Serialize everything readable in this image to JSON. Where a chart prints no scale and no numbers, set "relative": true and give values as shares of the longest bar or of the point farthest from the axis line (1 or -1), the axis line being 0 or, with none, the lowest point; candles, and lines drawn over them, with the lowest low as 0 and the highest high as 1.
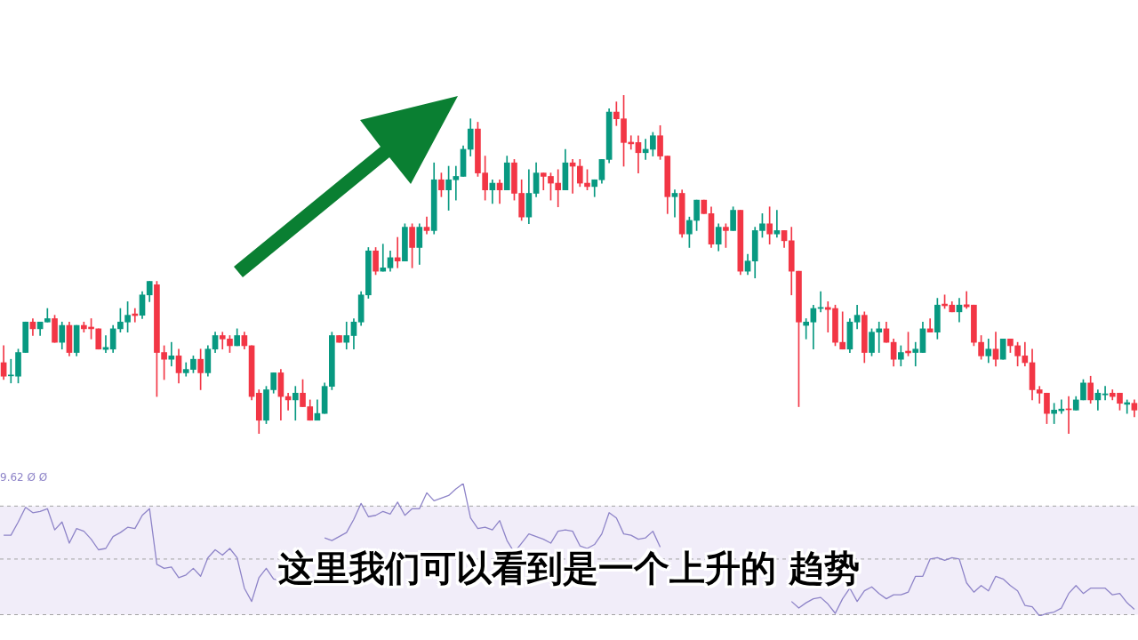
{
  "chart_data": [
    {
      "type": "candlestick",
      "relative": true,
      "categories": [
        null,
        null,
        null,
        null,
        null,
        null,
        null,
        null,
        null,
        null,
        null,
        null,
        null,
        null,
        null,
        null,
        null,
        null,
        null,
        null,
        null,
        null,
        null,
        null,
        null,
        null,
        null,
        null,
        null,
        null,
        null,
        null,
        null,
        null,
        null,
        null,
        null,
        null,
        null,
        null,
        null,
        null,
        null,
        null,
        null,
        null,
        null,
        null,
        null,
        null,
        null,
        null,
        null,
        null,
        null,
        null,
        null,
        null,
        null,
        null,
        null,
        null,
        null,
        null,
        null,
        null,
        null,
        null,
        null,
        null,
        null,
        null,
        null,
        null,
        null,
        null,
        null,
        null,
        null,
        null,
        null,
        null,
        null,
        null,
        null,
        null,
        null,
        null,
        null,
        null,
        null,
        null,
        null,
        null,
        null,
        null,
        null,
        null,
        null,
        null,
        null,
        null,
        null,
        null,
        null,
        null,
        null,
        null,
        null,
        null,
        null,
        null,
        null,
        null,
        null,
        null,
        null,
        null,
        null,
        null,
        null,
        null,
        null,
        null,
        null,
        null,
        null,
        null,
        null,
        null,
        null,
        null,
        null,
        null,
        null,
        null,
        null,
        null,
        null,
        null,
        null,
        null,
        null,
        null,
        null,
        null,
        null,
        null,
        null,
        null,
        null,
        null,
        null,
        null,
        null,
        null
      ],
      "colors": [
        "#f23645",
        "#089981",
        "#089981",
        "#089981",
        "#f23645",
        "#089981",
        "#089981",
        "#f23645",
        "#089981",
        "#f23645",
        "#089981",
        "#f23645",
        "#f23645",
        "#f23645",
        "#089981",
        "#089981",
        "#089981",
        "#089981",
        "#f23645",
        "#089981",
        "#089981",
        "#f23645",
        "#f23645",
        "#089981",
        "#f23645",
        "#089981",
        "#089981",
        "#f23645",
        "#089981",
        "#089981",
        "#f23645",
        "#f23645",
        "#089981",
        "#f23645",
        "#f23645",
        "#f23645",
        "#089981",
        "#089981",
        "#f23645",
        "#f23645",
        "#089981",
        "#f23645",
        "#f23645",
        "#089981",
        "#089981",
        "#089981",
        "#f23645",
        "#089981",
        "#089981",
        "#089981",
        "#089981",
        "#f23645",
        "#089981",
        "#089981",
        "#f23645",
        "#089981",
        "#f23645",
        "#089981",
        "#f23645",
        "#089981",
        "#f23645",
        "#089981",
        "#089981",
        "#089981",
        "#089981",
        "#f23645",
        "#f23645",
        "#089981",
        "#f23645",
        "#089981",
        "#f23645",
        "#f23645",
        "#089981",
        "#089981",
        "#f23645",
        "#f23645",
        "#f23645",
        "#089981",
        "#f23645",
        "#f23645",
        "#f23645",
        "#089981",
        "#089981",
        "#089981",
        "#f23645",
        "#f23645",
        "#f23645",
        "#f23645",
        "#089981",
        "#089981",
        "#f23645",
        "#f23645",
        "#089981",
        "#f23645",
        "#089981",
        "#089981",
        "#f23645",
        "#f23645",
        "#089981",
        "#f23645",
        "#089981",
        "#f23645",
        "#089981",
        "#089981",
        "#089981",
        "#f23645",
        "#089981",
        "#f23645",
        "#f23645",
        "#f23645",
        "#089981",
        "#089981",
        "#089981",
        "#f23645",
        "#f23645",
        "#f23645",
        "#089981",
        "#089981",
        "#f23645",
        "#089981",
        "#089981",
        "#f23645",
        "#f23645",
        "#089981",
        "#f23645",
        "#089981",
        "#089981",
        "#f23645",
        "#089981",
        "#f23645",
        "#f23645",
        "#089981",
        "#f23645",
        "#f23645",
        "#f23645",
        "#089981",
        "#f23645",
        "#089981",
        "#f23645",
        "#f23645",
        "#f23645",
        "#f23645",
        "#f23645",
        "#f23645",
        "#089981",
        "#089981",
        "#f23645",
        "#089981",
        "#089981",
        "#f23645",
        "#089981",
        "#089981",
        "#f23645",
        "#f23645",
        "#089981",
        "#f23645"
      ],
      "ohlc": [
        [
          0.21,
          0.26,
          0.16,
          0.17
        ],
        [
          0.171,
          0.22,
          0.15,
          0.173
        ],
        [
          0.17,
          0.25,
          0.15,
          0.24
        ],
        [
          0.24,
          0.33,
          0.24,
          0.33
        ],
        [
          0.33,
          0.34,
          0.29,
          0.31
        ],
        [
          0.31,
          0.33,
          0.29,
          0.33
        ],
        [
          0.33,
          0.37,
          0.33,
          0.34
        ],
        [
          0.34,
          0.35,
          0.27,
          0.27
        ],
        [
          0.27,
          0.33,
          0.25,
          0.32
        ],
        [
          0.32,
          0.33,
          0.23,
          0.24
        ],
        [
          0.24,
          0.32,
          0.23,
          0.32
        ],
        [
          0.32,
          0.33,
          0.3,
          0.31
        ],
        [
          0.315,
          0.34,
          0.28,
          0.31
        ],
        [
          0.31,
          0.31,
          0.25,
          0.25
        ],
        [
          0.249,
          0.29,
          0.24,
          0.255
        ],
        [
          0.25,
          0.32,
          0.24,
          0.31
        ],
        [
          0.31,
          0.37,
          0.3,
          0.33
        ],
        [
          0.33,
          0.39,
          0.3,
          0.35
        ],
        [
          0.354,
          0.37,
          0.33,
          0.349
        ],
        [
          0.35,
          0.42,
          0.34,
          0.41
        ],
        [
          0.41,
          0.45,
          0.39,
          0.45
        ],
        [
          0.44,
          0.45,
          0.11,
          0.24
        ],
        [
          0.24,
          0.26,
          0.16,
          0.22
        ],
        [
          0.22,
          0.27,
          0.2,
          0.23
        ],
        [
          0.23,
          0.25,
          0.15,
          0.18
        ],
        [
          0.18,
          0.21,
          0.17,
          0.19
        ],
        [
          0.19,
          0.23,
          0.18,
          0.22
        ],
        [
          0.22,
          0.25,
          0.13,
          0.18
        ],
        [
          0.18,
          0.26,
          0.17,
          0.25
        ],
        [
          0.25,
          0.3,
          0.24,
          0.29
        ],
        [
          0.29,
          0.3,
          0.25,
          0.28
        ],
        [
          0.28,
          0.29,
          0.24,
          0.26
        ],
        [
          0.26,
          0.31,
          0.26,
          0.29
        ],
        [
          0.29,
          0.3,
          0.25,
          0.26
        ],
        [
          0.26,
          0.26,
          0.1,
          0.11
        ],
        [
          0.12,
          0.13,
          0,
          0.04
        ],
        [
          0.04,
          0.14,
          0.03,
          0.13
        ],
        [
          0.13,
          0.18,
          0.12,
          0.18
        ],
        [
          0.18,
          0.19,
          0.04,
          0.11
        ],
        [
          0.11,
          0.12,
          0.07,
          0.1
        ],
        [
          0.1,
          0.14,
          0.04,
          0.12
        ],
        [
          0.12,
          0.16,
          0.08,
          0.08
        ],
        [
          0.08,
          0.1,
          0.04,
          0.04
        ],
        [
          0.04,
          0.1,
          0.04,
          0.06
        ],
        [
          0.06,
          0.15,
          0.06,
          0.14
        ],
        [
          0.14,
          0.3,
          0.13,
          0.29
        ],
        [
          0.29,
          0.29,
          0.27,
          0.27
        ],
        [
          0.27,
          0.33,
          0.25,
          0.29
        ],
        [
          0.29,
          0.34,
          0.25,
          0.33
        ],
        [
          0.33,
          0.42,
          0.32,
          0.41
        ],
        [
          0.41,
          0.55,
          0.4,
          0.54
        ],
        [
          0.54,
          0.55,
          0.47,
          0.48
        ],
        [
          0.48,
          0.56,
          0.48,
          0.49
        ],
        [
          0.49,
          0.54,
          0.48,
          0.52
        ],
        [
          0.52,
          0.58,
          0.49,
          0.51
        ],
        [
          0.51,
          0.62,
          0.51,
          0.61
        ],
        [
          0.61,
          0.62,
          0.49,
          0.55
        ],
        [
          0.55,
          0.62,
          0.5,
          0.61
        ],
        [
          0.61,
          0.64,
          0.59,
          0.6
        ],
        [
          0.6,
          0.8,
          0.59,
          0.75
        ],
        [
          0.75,
          0.77,
          0.7,
          0.72
        ],
        [
          0.72,
          0.79,
          0.66,
          0.75
        ],
        [
          0.75,
          0.79,
          0.69,
          0.76
        ],
        [
          0.76,
          0.85,
          0.76,
          0.84
        ],
        [
          0.84,
          0.93,
          0.82,
          0.9
        ],
        [
          0.9,
          0.92,
          0.76,
          0.77
        ],
        [
          0.77,
          0.82,
          0.69,
          0.72
        ],
        [
          0.72,
          0.75,
          0.68,
          0.74
        ],
        [
          0.74,
          0.75,
          0.68,
          0.72
        ],
        [
          0.72,
          0.82,
          0.72,
          0.8
        ],
        [
          0.8,
          0.81,
          0.69,
          0.71
        ],
        [
          0.71,
          0.75,
          0.63,
          0.64
        ],
        [
          0.64,
          0.78,
          0.62,
          0.71
        ],
        [
          0.71,
          0.8,
          0.7,
          0.77
        ],
        [
          0.77,
          0.77,
          0.72,
          0.76
        ],
        [
          0.76,
          0.77,
          0.69,
          0.74
        ],
        [
          0.74,
          0.78,
          0.67,
          0.72
        ],
        [
          0.72,
          0.84,
          0.72,
          0.8
        ],
        [
          0.8,
          0.81,
          0.71,
          0.79
        ],
        [
          0.79,
          0.81,
          0.73,
          0.74
        ],
        [
          0.74,
          0.78,
          0.72,
          0.73
        ],
        [
          0.73,
          0.75,
          0.7,
          0.75
        ],
        [
          0.75,
          0.81,
          0.74,
          0.81
        ],
        [
          0.81,
          0.96,
          0.8,
          0.95
        ],
        [
          0.95,
          0.98,
          0.91,
          0.93
        ],
        [
          0.93,
          1,
          0.79,
          0.86
        ],
        [
          0.861,
          0.88,
          0.84,
          0.856
        ],
        [
          0.86,
          0.88,
          0.77,
          0.83
        ],
        [
          0.83,
          0.87,
          0.81,
          0.84
        ],
        [
          0.84,
          0.89,
          0.82,
          0.88
        ],
        [
          0.88,
          0.91,
          0.81,
          0.82
        ],
        [
          0.82,
          0.82,
          0.65,
          0.7
        ],
        [
          0.7,
          0.72,
          0.64,
          0.71
        ],
        [
          0.71,
          0.72,
          0.58,
          0.59
        ],
        [
          0.59,
          0.64,
          0.55,
          0.63
        ],
        [
          0.63,
          0.69,
          0.6,
          0.69
        ],
        [
          0.69,
          0.69,
          0.65,
          0.65
        ],
        [
          0.65,
          0.67,
          0.55,
          0.56
        ],
        [
          0.56,
          0.62,
          0.54,
          0.61
        ],
        [
          0.61,
          0.62,
          0.55,
          0.6
        ],
        [
          0.6,
          0.67,
          0.6,
          0.66
        ],
        [
          0.66,
          0.66,
          0.47,
          0.48
        ],
        [
          0.48,
          0.53,
          0.47,
          0.51
        ],
        [
          0.51,
          0.61,
          0.46,
          0.6
        ],
        [
          0.6,
          0.65,
          0.58,
          0.62
        ],
        [
          0.62,
          0.67,
          0.56,
          0.59
        ],
        [
          0.59,
          0.66,
          0.58,
          0.6
        ],
        [
          0.6,
          0.6,
          0.55,
          0.57
        ],
        [
          0.57,
          0.61,
          0.41,
          0.48
        ],
        [
          0.48,
          0.48,
          0.08,
          0.33
        ],
        [
          0.32,
          0.34,
          0.28,
          0.33
        ],
        [
          0.33,
          0.38,
          0.25,
          0.37
        ],
        [
          0.37,
          0.42,
          0.36,
          0.373
        ],
        [
          0.373,
          0.39,
          0.3,
          0.367
        ],
        [
          0.37,
          0.38,
          0.26,
          0.27
        ],
        [
          0.27,
          0.36,
          0.25,
          0.25
        ],
        [
          0.25,
          0.34,
          0.24,
          0.33
        ],
        [
          0.33,
          0.38,
          0.31,
          0.35
        ],
        [
          0.35,
          0.36,
          0.21,
          0.24
        ],
        [
          0.24,
          0.31,
          0.23,
          0.3
        ],
        [
          0.3,
          0.33,
          0.24,
          0.31
        ],
        [
          0.31,
          0.33,
          0.27,
          0.27
        ],
        [
          0.27,
          0.28,
          0.2,
          0.22
        ],
        [
          0.22,
          0.26,
          0.2,
          0.24
        ],
        [
          0.244,
          0.3,
          0.23,
          0.239
        ],
        [
          0.24,
          0.27,
          0.2,
          0.25
        ],
        [
          0.24,
          0.33,
          0.24,
          0.31
        ],
        [
          0.31,
          0.34,
          0.3,
          0.3
        ],
        [
          0.3,
          0.4,
          0.28,
          0.38
        ],
        [
          0.383,
          0.41,
          0.37,
          0.378
        ],
        [
          0.38,
          0.39,
          0.36,
          0.36
        ],
        [
          0.36,
          0.4,
          0.33,
          0.38
        ],
        [
          0.381,
          0.42,
          0.37,
          0.375
        ],
        [
          0.38,
          0.38,
          0.26,
          0.27
        ],
        [
          0.27,
          0.29,
          0.22,
          0.23
        ],
        [
          0.23,
          0.28,
          0.21,
          0.25
        ],
        [
          0.25,
          0.3,
          0.2,
          0.22
        ],
        [
          0.22,
          0.28,
          0.22,
          0.28
        ],
        [
          0.28,
          0.28,
          0.24,
          0.26
        ],
        [
          0.26,
          0.27,
          0.2,
          0.23
        ],
        [
          0.23,
          0.27,
          0.2,
          0.21
        ],
        [
          0.21,
          0.25,
          0.1,
          0.13
        ],
        [
          0.13,
          0.14,
          0.09,
          0.12
        ],
        [
          0.12,
          0.12,
          0.03,
          0.06
        ],
        [
          0.06,
          0.09,
          0.03,
          0.07
        ],
        [
          0.068,
          0.1,
          0.06,
          0.073
        ],
        [
          0.073,
          0.11,
          0,
          0.071
        ],
        [
          0.07,
          0.11,
          0.07,
          0.1
        ],
        [
          0.1,
          0.16,
          0.1,
          0.15
        ],
        [
          0.15,
          0.17,
          0.09,
          0.1
        ],
        [
          0.1,
          0.13,
          0.07,
          0.12
        ],
        [
          0.115,
          0.14,
          0.1,
          0.118
        ],
        [
          0.12,
          0.13,
          0.1,
          0.11
        ],
        [
          0.12,
          0.12,
          0.07,
          0.09
        ],
        [
          0.087,
          0.1,
          0.06,
          0.092
        ],
        [
          0.09,
          0.1,
          0.05,
          0.07
        ]
      ],
      "annotations": [
        "这里我们可以看到是一个上升的 趋势"
      ]
    },
    {
      "type": "line",
      "relative": true,
      "categories": [
        null,
        null,
        null,
        null,
        null,
        null,
        null,
        null,
        null,
        null,
        null,
        null,
        null,
        null,
        null,
        null,
        null,
        null,
        null,
        null,
        null,
        null,
        null,
        null,
        null,
        null,
        null,
        null,
        null,
        null,
        null,
        null,
        null,
        null,
        null,
        null,
        null,
        null,
        null,
        null,
        null,
        null,
        null,
        null,
        null,
        null,
        null,
        null,
        null,
        null,
        null,
        null,
        null,
        null,
        null,
        null,
        null,
        null,
        null,
        null,
        null,
        null,
        null,
        null,
        null,
        null,
        null,
        null,
        null,
        null,
        null,
        null,
        null,
        null,
        null,
        null,
        null,
        null,
        null,
        null,
        null,
        null,
        null,
        null,
        null,
        null,
        null,
        null,
        null,
        null,
        null,
        null,
        null,
        null,
        null,
        null,
        null,
        null,
        null,
        null,
        null,
        null,
        null,
        null,
        null,
        null,
        null,
        null,
        null,
        null,
        null,
        null,
        null,
        null,
        null,
        null,
        null,
        null,
        null,
        null,
        null,
        null,
        null,
        null,
        null,
        null,
        null,
        null,
        null,
        null,
        null,
        null,
        null,
        null,
        null,
        null,
        null,
        null,
        null,
        null,
        null,
        null,
        null,
        null,
        null,
        null,
        null,
        null,
        null,
        null,
        null,
        null,
        null,
        null,
        null,
        null
      ],
      "series": [
        {
          "color": "#8e84c8",
          "values": [
            0.61,
            0.61,
            0.71,
            0.82,
            0.78,
            0.79,
            0.81,
            0.65,
            0.71,
            0.55,
            0.66,
            0.64,
            0.58,
            0.5,
            0.51,
            0.6,
            0.63,
            0.67,
            0.66,
            0.76,
            0.81,
            0.39,
            0.36,
            0.37,
            0.29,
            0.31,
            0.36,
            0.3,
            0.44,
            0.5,
            0.46,
            0.51,
            0.44,
            0.21,
            0.11,
            0.29,
            0.36,
            0.28,
            0.27,
            0.27,
            null,
            null,
            null,
            null,
            0.59,
            0.57,
            0.6,
            0.63,
            0.73,
            0.85,
            0.75,
            0.76,
            0.79,
            0.77,
            0.86,
            0.76,
            0.81,
            0.81,
            0.93,
            0.87,
            0.89,
            0.91,
            0.96,
            1,
            0.74,
            0.66,
            0.67,
            0.65,
            0.72,
            0.57,
            0.48,
            0.55,
            0.62,
            0.6,
            0.58,
            0.55,
            0.64,
            0.65,
            0.64,
            0.53,
            0.51,
            0.54,
            0.62,
            0.78,
            0.74,
            0.62,
            0.61,
            0.58,
            0.59,
            0.64,
            0.52,
            null,
            null,
            null,
            null,
            null,
            null,
            null,
            null,
            null,
            null,
            null,
            null,
            null,
            null,
            null,
            null,
            null,
            0.11,
            0.06,
            0.1,
            0.13,
            0.14,
            0.09,
            0.02,
            0.13,
            0.21,
            0.11,
            0.19,
            0.22,
            0.17,
            0.13,
            0.16,
            0.16,
            0.18,
            0.3,
            0.3,
            0.43,
            0.44,
            0.42,
            0.44,
            0.43,
            0.25,
            0.18,
            0.23,
            0.19,
            0.3,
            0.28,
            0.23,
            0.19,
            0.08,
            0.07,
            0,
            0.02,
            0.03,
            0.06,
            0.17,
            0.23,
            0.17,
            0.21,
            0.21,
            0.21,
            0.16,
            0.17,
            0.1,
            0.05
          ]
        }
      ],
      "bands": [
        {
          "axis": "y",
          "from": 0.01,
          "to": 0.83,
          "color": "#f1edf9"
        }
      ],
      "ref_lines": [
        {
          "axis": "y",
          "value": 0.83,
          "color": "#a3a3a3",
          "line_style": "dashed"
        },
        {
          "axis": "y",
          "value": 0.43,
          "color": "#a3a3a3",
          "line_style": "dashed"
        },
        {
          "axis": "y",
          "value": 0.01,
          "color": "#a3a3a3",
          "line_style": "dashed"
        }
      ],
      "annotations": [
        "9.62 Ø Ø"
      ]
    }
  ]
}
